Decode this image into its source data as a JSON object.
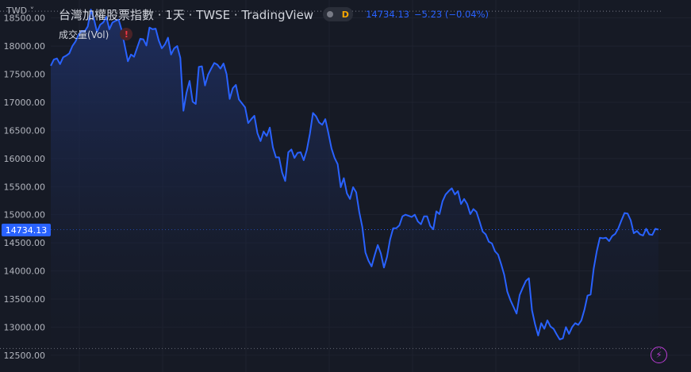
{
  "header": {
    "currency": "TWD",
    "currency_chevron": "˅",
    "symbol_title": "台灣加權股票指數 · 1天 · TWSE · TradingView",
    "interval_badge": "D",
    "last_price": "14734.13",
    "change": "−5.23 (−0.04%)"
  },
  "volume_indicator": {
    "label": "成交量(Vol)",
    "warning_icon": "!",
    "warning_color": "#f23645"
  },
  "price_tag": "14734.13",
  "flash_icon_glyph": "⚡",
  "colors": {
    "background": "#161a25",
    "line": "#2962ff",
    "area_top": "#1e2f63",
    "grid": "#1f2330",
    "axis_text": "#b2b5be",
    "price_tag_bg": "#2962ff"
  },
  "chart_data": {
    "type": "area",
    "title": "台灣加權股票指數",
    "y_axis_position": "left",
    "yticks": [
      12500,
      13000,
      13500,
      14000,
      14500,
      15000,
      15500,
      16000,
      16500,
      17000,
      17500,
      18000,
      18500
    ],
    "ytick_labels": [
      "12500.00",
      "13000.00",
      "13500.00",
      "14000.00",
      "14500.00",
      "15000.00",
      "15500.00",
      "16000.00",
      "16500.00",
      "17000.00",
      "17500.00",
      "18000.00",
      "18500.00"
    ],
    "ylim": [
      12300,
      18820
    ],
    "grid": true,
    "dotted_reference_lines": [
      18620,
      14734.13,
      12620
    ],
    "last_value": 14734.13,
    "series": [
      {
        "values": [
          17650,
          17760,
          17780,
          17680,
          17800,
          17830,
          17870,
          18000,
          18080,
          18200,
          18270,
          18260,
          18350,
          18650,
          18480,
          18250,
          18380,
          18420,
          18520,
          18300,
          18420,
          18450,
          18470,
          18280,
          18000,
          17730,
          17850,
          17810,
          17970,
          18130,
          18120,
          18010,
          18330,
          18300,
          18310,
          18100,
          17960,
          18030,
          18150,
          17850,
          17960,
          18000,
          17790,
          16850,
          17170,
          17380,
          17010,
          16970,
          17630,
          17640,
          17300,
          17490,
          17600,
          17700,
          17670,
          17600,
          17690,
          17500,
          17060,
          17250,
          17310,
          17050,
          16980,
          16910,
          16630,
          16700,
          16760,
          16450,
          16310,
          16480,
          16400,
          16550,
          16200,
          16020,
          16020,
          15750,
          15600,
          16110,
          16160,
          16010,
          16100,
          16110,
          15970,
          16150,
          16440,
          16810,
          16750,
          16640,
          16600,
          16700,
          16450,
          16180,
          16010,
          15900,
          15490,
          15650,
          15380,
          15280,
          15490,
          15400,
          15050,
          14780,
          14330,
          14180,
          14080,
          14280,
          14460,
          14310,
          14060,
          14250,
          14560,
          14760,
          14760,
          14810,
          14970,
          15000,
          14980,
          14960,
          15000,
          14880,
          14830,
          14970,
          14970,
          14800,
          14740,
          15060,
          15010,
          15240,
          15360,
          15420,
          15470,
          15360,
          15420,
          15190,
          15280,
          15190,
          15010,
          15100,
          15050,
          14880,
          14700,
          14650,
          14520,
          14490,
          14350,
          14290,
          14120,
          13930,
          13630,
          13480,
          13360,
          13240,
          13570,
          13700,
          13820,
          13870,
          13300,
          13050,
          12850,
          13070,
          12970,
          13120,
          13010,
          12970,
          12870,
          12780,
          12800,
          13000,
          12880,
          13000,
          13070,
          13040,
          13120,
          13310,
          13560,
          13580,
          14040,
          14350,
          14590,
          14580,
          14590,
          14530,
          14620,
          14660,
          14760,
          14900,
          15030,
          15020,
          14900,
          14670,
          14710,
          14650,
          14630,
          14750,
          14650,
          14640,
          14750,
          14734.13
        ]
      }
    ]
  }
}
